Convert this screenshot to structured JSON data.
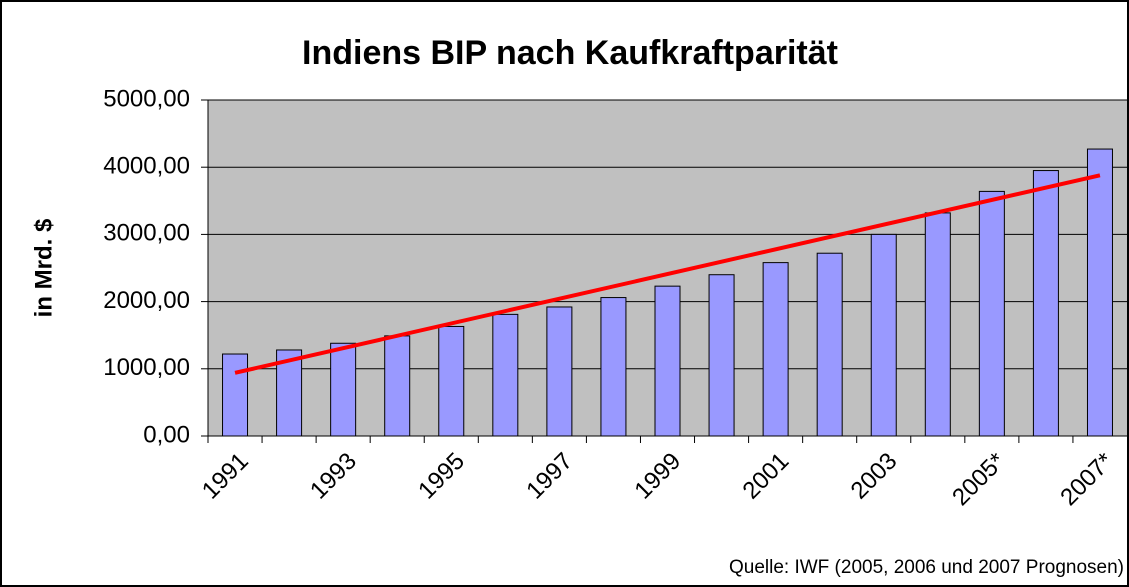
{
  "chart_data": {
    "type": "bar",
    "title": "Indiens BIP nach Kaufkraftparität",
    "y_label": "in Mrd. $",
    "source": "Quelle: IWF (2005, 2006 und 2007 Prognosen)",
    "categories": [
      "1991",
      null,
      "1993",
      null,
      "1995",
      null,
      "1997",
      null,
      "1999",
      null,
      "2001",
      null,
      "2003",
      null,
      "2005*",
      null,
      "2007*"
    ],
    "values": [
      1220,
      1280,
      1380,
      1490,
      1630,
      1810,
      1920,
      2060,
      2230,
      2400,
      2580,
      2720,
      3000,
      3320,
      3640,
      3950,
      4270
    ],
    "color": "#9999ff",
    "trendline": {
      "color": "#ff0000",
      "start": 940,
      "end": 3880
    },
    "ylim": [
      0,
      5000
    ],
    "yticks": [
      {
        "value": 0,
        "label": "0,00"
      },
      {
        "value": 1000,
        "label": "1000,00"
      },
      {
        "value": 2000,
        "label": "2000,00"
      },
      {
        "value": 3000,
        "label": "3000,00"
      },
      {
        "value": 4000,
        "label": "4000,00"
      },
      {
        "value": 5000,
        "label": "5000,00"
      }
    ],
    "grid": true
  }
}
